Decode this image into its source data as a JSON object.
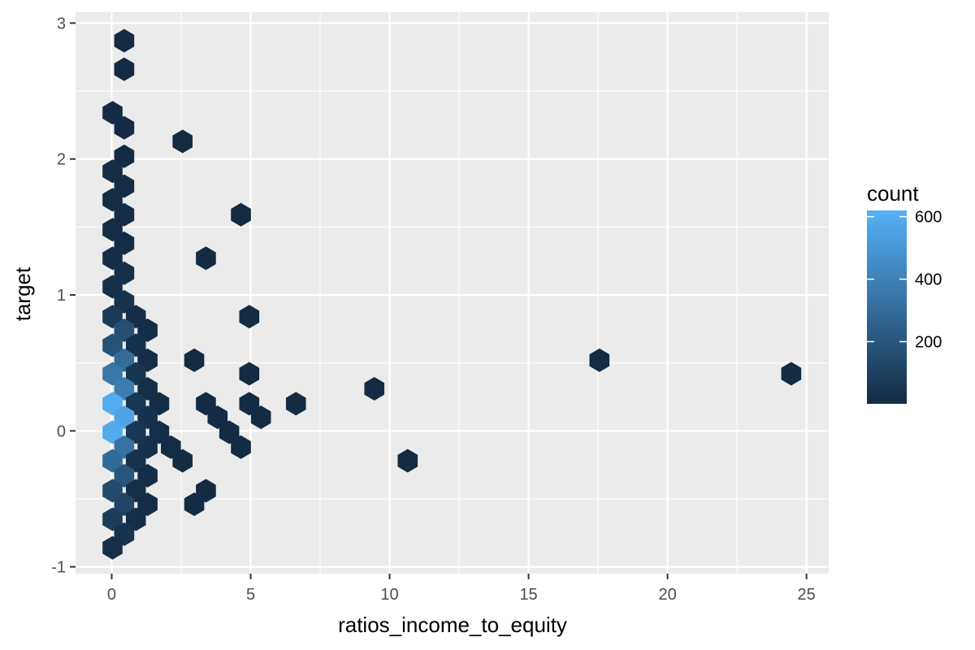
{
  "chart_data": {
    "type": "hexbin",
    "xlabel": "ratios_income_to_equity",
    "ylabel": "target",
    "xlim": [
      -1.3,
      25.8
    ],
    "ylim": [
      -1.05,
      3.08
    ],
    "x_ticks": [
      0,
      5,
      10,
      15,
      20,
      25
    ],
    "y_ticks": [
      -1,
      0,
      1,
      2,
      3
    ],
    "x_tick_labels": [
      "0",
      "5",
      "10",
      "15",
      "20",
      "25"
    ],
    "y_tick_labels": [
      "-1",
      "0",
      "1",
      "2",
      "3"
    ],
    "grid": true,
    "legend": {
      "title": "count",
      "position": "right",
      "range": [
        1,
        620
      ],
      "breaks": [
        200,
        400,
        600
      ],
      "break_labels": [
        "200",
        "400",
        "600"
      ],
      "low_color": "#132B43",
      "high_color": "#56B1F7"
    },
    "hex_bins": [
      {
        "x": 0.45,
        "y": 2.87,
        "count": 2
      },
      {
        "x": 0.45,
        "y": 2.66,
        "count": 2
      },
      {
        "x": 0.03,
        "y": 2.34,
        "count": 3
      },
      {
        "x": 0.45,
        "y": 2.23,
        "count": 3
      },
      {
        "x": 0.45,
        "y": 2.02,
        "count": 5
      },
      {
        "x": 0.03,
        "y": 1.91,
        "count": 6
      },
      {
        "x": 0.45,
        "y": 1.8,
        "count": 6
      },
      {
        "x": 0.03,
        "y": 1.7,
        "count": 8
      },
      {
        "x": 0.45,
        "y": 1.59,
        "count": 8
      },
      {
        "x": 0.03,
        "y": 1.48,
        "count": 10
      },
      {
        "x": 0.45,
        "y": 1.38,
        "count": 12
      },
      {
        "x": 0.03,
        "y": 1.27,
        "count": 15
      },
      {
        "x": 0.45,
        "y": 1.16,
        "count": 20
      },
      {
        "x": 0.03,
        "y": 1.06,
        "count": 25
      },
      {
        "x": 0.45,
        "y": 0.95,
        "count": 40
      },
      {
        "x": 0.03,
        "y": 0.84,
        "count": 70
      },
      {
        "x": 0.87,
        "y": 0.84,
        "count": 15
      },
      {
        "x": 0.45,
        "y": 0.74,
        "count": 170
      },
      {
        "x": 1.29,
        "y": 0.74,
        "count": 10
      },
      {
        "x": 0.03,
        "y": 0.63,
        "count": 180
      },
      {
        "x": 0.87,
        "y": 0.63,
        "count": 30
      },
      {
        "x": 0.45,
        "y": 0.52,
        "count": 300
      },
      {
        "x": 1.29,
        "y": 0.52,
        "count": 15
      },
      {
        "x": 0.03,
        "y": 0.42,
        "count": 350
      },
      {
        "x": 0.87,
        "y": 0.42,
        "count": 50
      },
      {
        "x": 0.45,
        "y": 0.31,
        "count": 380
      },
      {
        "x": 1.29,
        "y": 0.31,
        "count": 20
      },
      {
        "x": 0.03,
        "y": 0.2,
        "count": 600
      },
      {
        "x": 0.87,
        "y": 0.2,
        "count": 60
      },
      {
        "x": 1.71,
        "y": 0.2,
        "count": 10
      },
      {
        "x": 0.45,
        "y": 0.1,
        "count": 560
      },
      {
        "x": 1.29,
        "y": 0.1,
        "count": 35
      },
      {
        "x": 0.03,
        "y": -0.01,
        "count": 590
      },
      {
        "x": 0.87,
        "y": -0.01,
        "count": 60
      },
      {
        "x": 1.71,
        "y": -0.01,
        "count": 15
      },
      {
        "x": 0.45,
        "y": -0.12,
        "count": 330
      },
      {
        "x": 1.29,
        "y": -0.12,
        "count": 30
      },
      {
        "x": 2.13,
        "y": -0.12,
        "count": 8
      },
      {
        "x": 0.03,
        "y": -0.22,
        "count": 290
      },
      {
        "x": 0.87,
        "y": -0.22,
        "count": 40
      },
      {
        "x": 2.55,
        "y": -0.22,
        "count": 5
      },
      {
        "x": 0.45,
        "y": -0.33,
        "count": 200
      },
      {
        "x": 1.29,
        "y": -0.33,
        "count": 15
      },
      {
        "x": 0.03,
        "y": -0.44,
        "count": 150
      },
      {
        "x": 0.87,
        "y": -0.44,
        "count": 25
      },
      {
        "x": 0.45,
        "y": -0.54,
        "count": 120
      },
      {
        "x": 1.29,
        "y": -0.54,
        "count": 10
      },
      {
        "x": 0.03,
        "y": -0.65,
        "count": 80
      },
      {
        "x": 0.87,
        "y": -0.65,
        "count": 15
      },
      {
        "x": 0.45,
        "y": -0.76,
        "count": 40
      },
      {
        "x": 0.03,
        "y": -0.86,
        "count": 20
      },
      {
        "x": 2.55,
        "y": 2.13,
        "count": 2
      },
      {
        "x": 4.65,
        "y": 1.59,
        "count": 2
      },
      {
        "x": 3.39,
        "y": 1.27,
        "count": 2
      },
      {
        "x": 4.95,
        "y": 0.84,
        "count": 2
      },
      {
        "x": 2.97,
        "y": 0.52,
        "count": 2
      },
      {
        "x": 4.95,
        "y": 0.42,
        "count": 2
      },
      {
        "x": 3.39,
        "y": 0.2,
        "count": 2
      },
      {
        "x": 4.95,
        "y": 0.2,
        "count": 2
      },
      {
        "x": 6.63,
        "y": 0.2,
        "count": 2
      },
      {
        "x": 3.81,
        "y": 0.1,
        "count": 2
      },
      {
        "x": 5.37,
        "y": 0.1,
        "count": 2
      },
      {
        "x": 4.23,
        "y": -0.01,
        "count": 2
      },
      {
        "x": 4.65,
        "y": -0.12,
        "count": 2
      },
      {
        "x": 3.39,
        "y": -0.44,
        "count": 2
      },
      {
        "x": 2.97,
        "y": -0.54,
        "count": 2
      },
      {
        "x": 9.45,
        "y": 0.31,
        "count": 2
      },
      {
        "x": 10.65,
        "y": -0.22,
        "count": 2
      },
      {
        "x": 17.55,
        "y": 0.52,
        "count": 2
      },
      {
        "x": 24.45,
        "y": 0.42,
        "count": 2
      }
    ]
  }
}
